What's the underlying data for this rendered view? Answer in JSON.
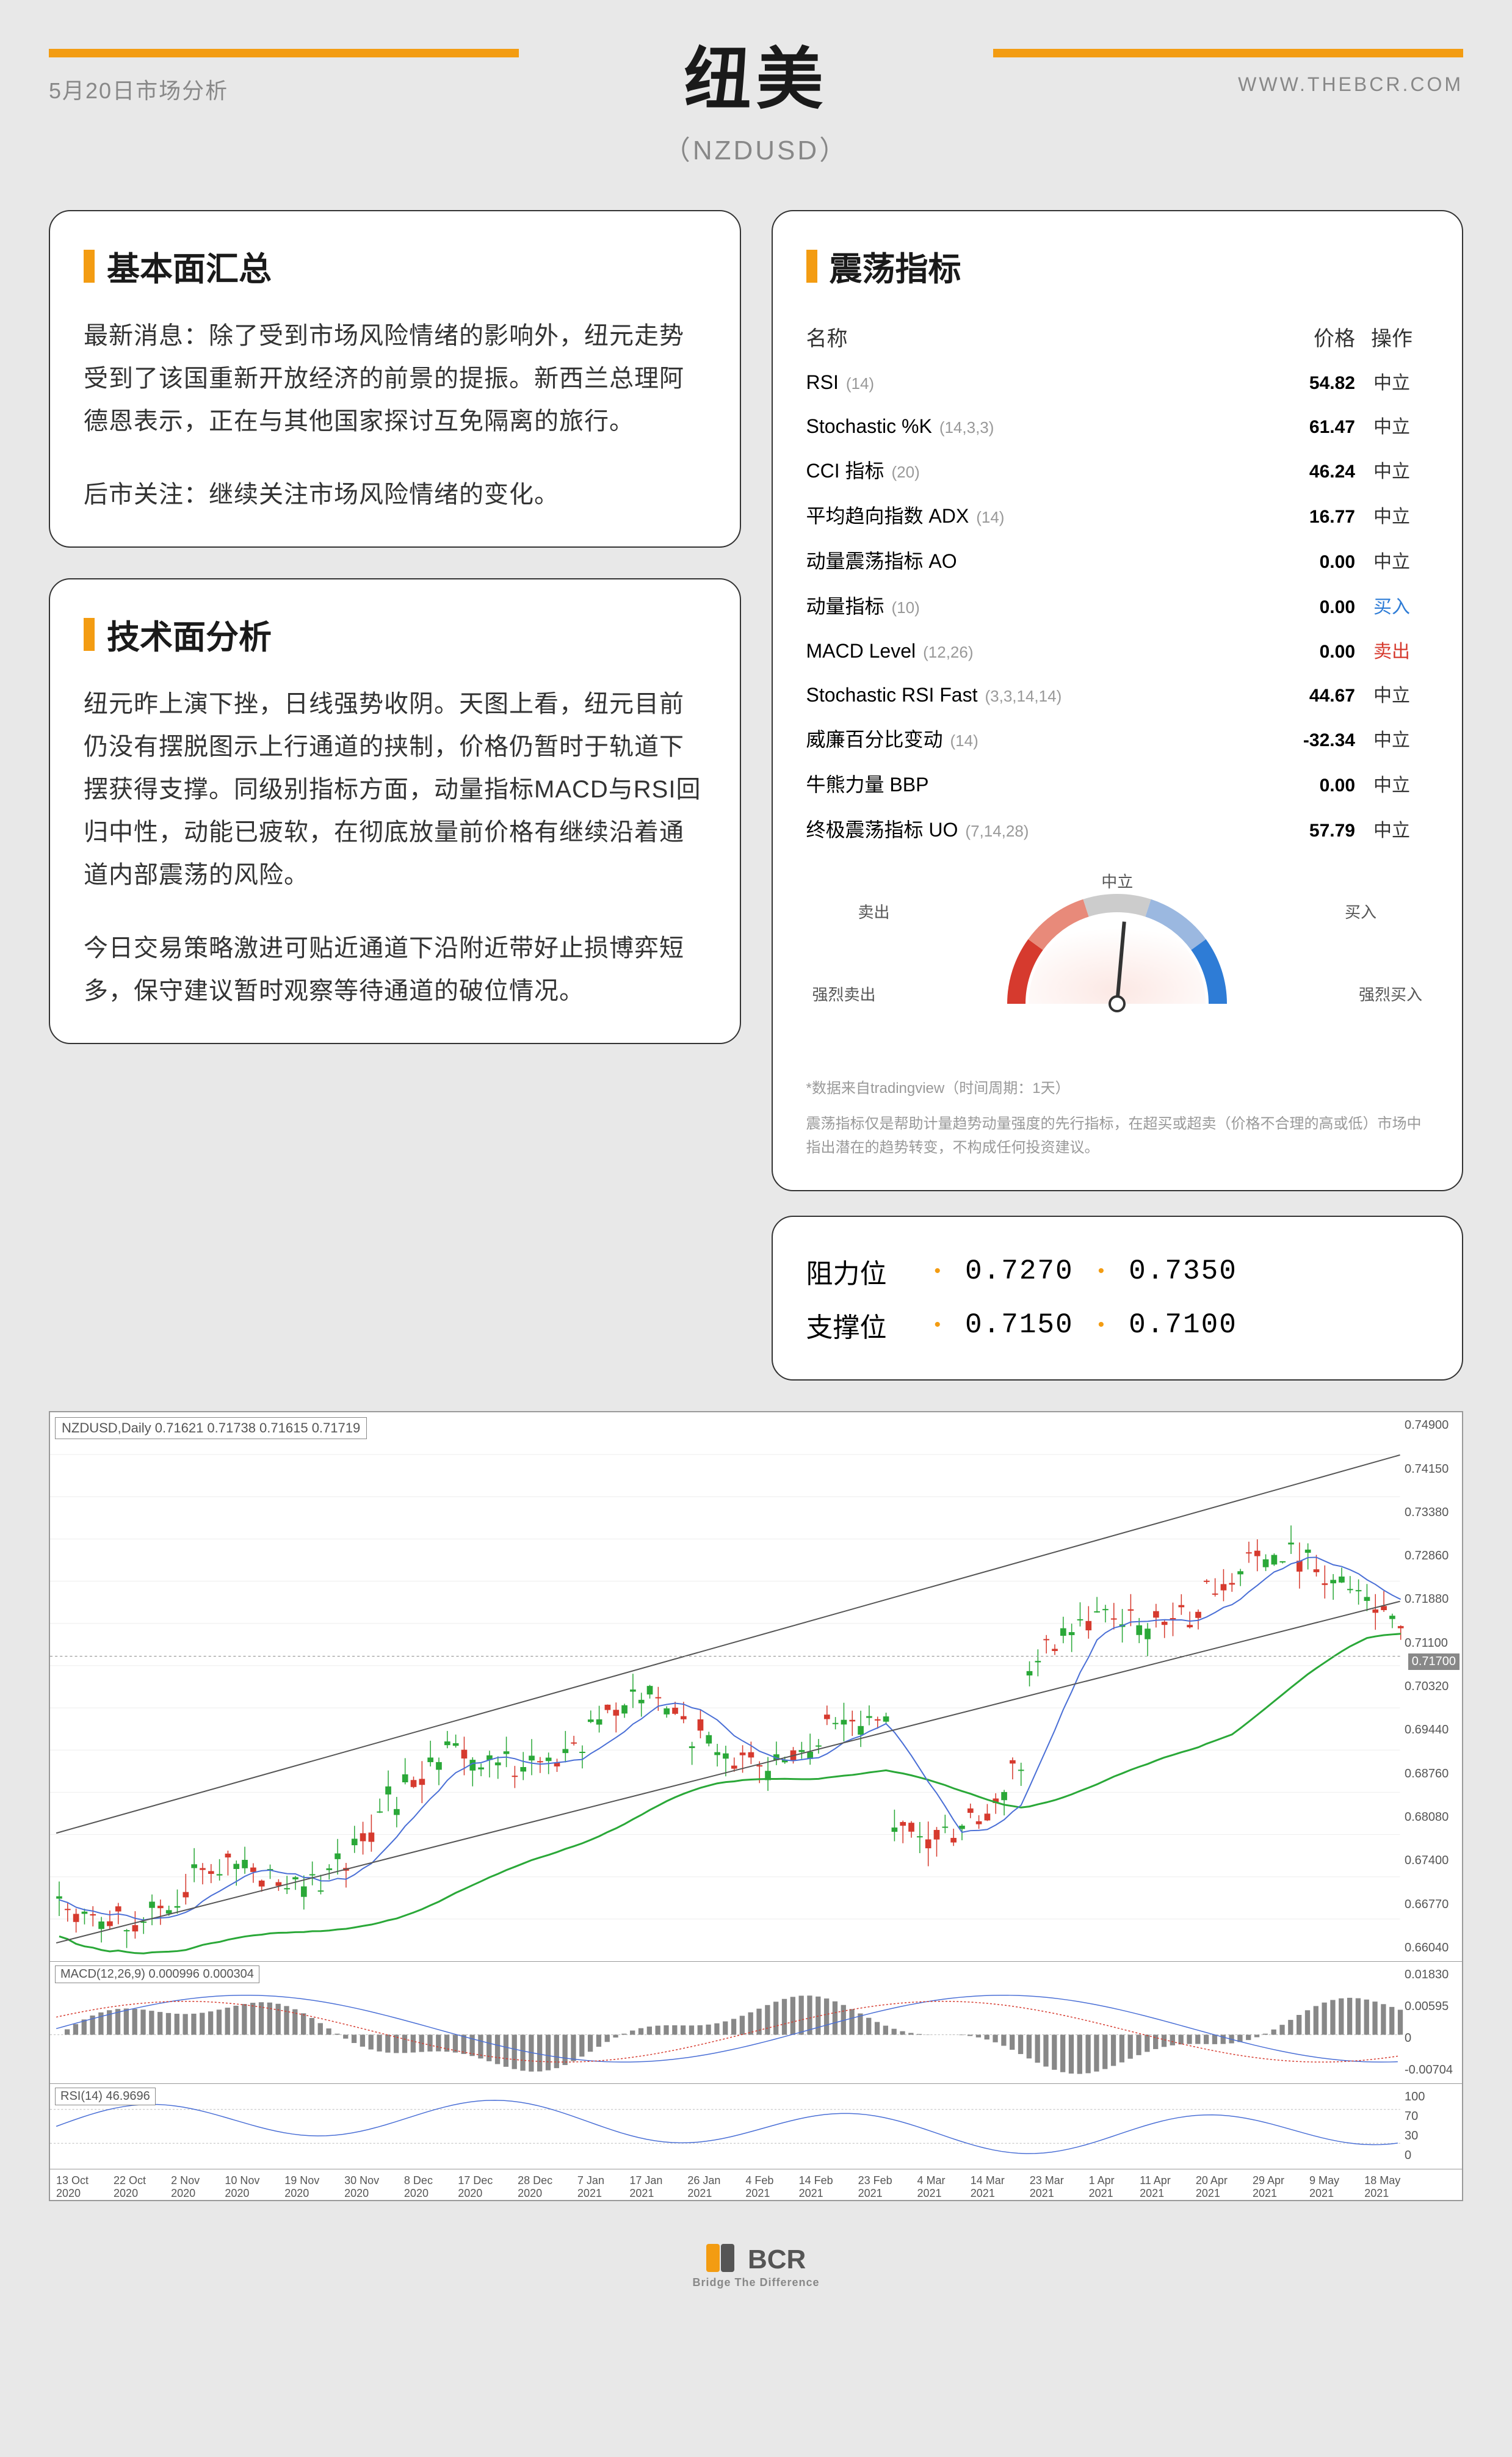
{
  "header": {
    "date": "5月20日市场分析",
    "url": "WWW.THEBCR.COM",
    "title": "纽美",
    "subtitle": "（NZDUSD）"
  },
  "fundamental": {
    "title": "基本面汇总",
    "para1": "最新消息：除了受到市场风险情绪的影响外，纽元走势受到了该国重新开放经济的前景的提振。新西兰总理阿德恩表示，正在与其他国家探讨互免隔离的旅行。",
    "para2": "后市关注：继续关注市场风险情绪的变化。"
  },
  "technical": {
    "title": "技术面分析",
    "para1": "纽元昨上演下挫，日线强势收阴。天图上看，纽元目前仍没有摆脱图示上行通道的挟制，价格仍暂时于轨道下摆获得支撑。同级别指标方面，动量指标MACD与RSI回归中性，动能已疲软，在彻底放量前价格有继续沿着通道内部震荡的风险。",
    "para2": "今日交易策略激进可贴近通道下沿附近带好止损博弈短多，保守建议暂时观察等待通道的破位情况。"
  },
  "oscillator": {
    "title": "震荡指标",
    "header_name": "名称",
    "header_price": "价格",
    "header_action": "操作",
    "rows": [
      {
        "name": "RSI",
        "param": "(14)",
        "val": "54.82",
        "act": "中立",
        "cls": "act-neutral"
      },
      {
        "name": "Stochastic %K",
        "param": "(14,3,3)",
        "val": "61.47",
        "act": "中立",
        "cls": "act-neutral"
      },
      {
        "name": "CCI 指标",
        "param": "(20)",
        "val": "46.24",
        "act": "中立",
        "cls": "act-neutral"
      },
      {
        "name": "平均趋向指数 ADX",
        "param": "(14)",
        "val": "16.77",
        "act": "中立",
        "cls": "act-neutral"
      },
      {
        "name": "动量震荡指标 AO",
        "param": "",
        "val": "0.00",
        "act": "中立",
        "cls": "act-neutral"
      },
      {
        "name": "动量指标",
        "param": "(10)",
        "val": "0.00",
        "act": "买入",
        "cls": "act-buy"
      },
      {
        "name": "MACD Level",
        "param": "(12,26)",
        "val": "0.00",
        "act": "卖出",
        "cls": "act-sell"
      },
      {
        "name": "Stochastic RSI Fast",
        "param": "(3,3,14,14)",
        "val": "44.67",
        "act": "中立",
        "cls": "act-neutral"
      },
      {
        "name": "威廉百分比变动",
        "param": "(14)",
        "val": "-32.34",
        "act": "中立",
        "cls": "act-neutral"
      },
      {
        "name": "牛熊力量 BBP",
        "param": "",
        "val": "0.00",
        "act": "中立",
        "cls": "act-neutral"
      },
      {
        "name": "终极震荡指标 UO",
        "param": "(7,14,28)",
        "val": "57.79",
        "act": "中立",
        "cls": "act-neutral"
      }
    ],
    "gauge": {
      "strong_sell": "强烈卖出",
      "sell": "卖出",
      "neutral": "中立",
      "buy": "买入",
      "strong_buy": "强烈买入",
      "needle_angle": 95,
      "colors": {
        "strong_sell": "#d63a2e",
        "sell": "#e88a7a",
        "neutral": "#cccccc",
        "buy": "#9bb8e0",
        "strong_buy": "#2e7cd6"
      }
    },
    "disclaimer_line1": "*数据来自tradingview（时间周期：1天）",
    "disclaimer_line2": "震荡指标仅是帮助计量趋势动量强度的先行指标，在超买或超卖（价格不合理的高或低）市场中指出潜在的趋势转变，不构成任何投资建议。"
  },
  "levels": {
    "resistance_label": "阻力位",
    "support_label": "支撑位",
    "r1": "0.7270",
    "r2": "0.7350",
    "s1": "0.7150",
    "s2": "0.7100"
  },
  "chart": {
    "info_bar": "NZDUSD,Daily 0.71621 0.71738 0.71615 0.71719",
    "macd_label": "MACD(12,26,9) 0.000996 0.000304",
    "rsi_label": "RSI(14) 46.9696",
    "y_ticks": [
      "0.74900",
      "0.74150",
      "0.73380",
      "0.72860",
      "0.71880",
      "0.71100",
      "0.70320",
      "0.69440",
      "0.68760",
      "0.68080",
      "0.67400",
      "0.66770",
      "0.66040"
    ],
    "price_now": "0.71700",
    "macd_ticks": [
      "0.01830",
      "0.00595",
      "0",
      "-0.00704"
    ],
    "rsi_ticks": [
      "100",
      "70",
      "30",
      "0"
    ],
    "dates": [
      "13 Oct 2020",
      "22 Oct 2020",
      "2 Nov 2020",
      "10 Nov 2020",
      "19 Nov 2020",
      "30 Nov 2020",
      "8 Dec 2020",
      "17 Dec 2020",
      "28 Dec 2020",
      "7 Jan 2021",
      "17 Jan 2021",
      "26 Jan 2021",
      "4 Feb 2021",
      "14 Feb 2021",
      "23 Feb 2021",
      "4 Mar 2021",
      "14 Mar 2021",
      "23 Mar 2021",
      "1 Apr 2021",
      "11 Apr 2021",
      "20 Apr 2021",
      "29 Apr 2021",
      "9 May 2021",
      "18 May 2021"
    ],
    "candles": {
      "count": 160,
      "up_color": "#2aa838",
      "down_color": "#d63a2e",
      "ma_color": "#2aa838",
      "trend_color": "#555555",
      "signal_color": "#4a6fd6"
    }
  },
  "footer": {
    "brand": "BCR",
    "tagline": "Bridge The Difference"
  }
}
